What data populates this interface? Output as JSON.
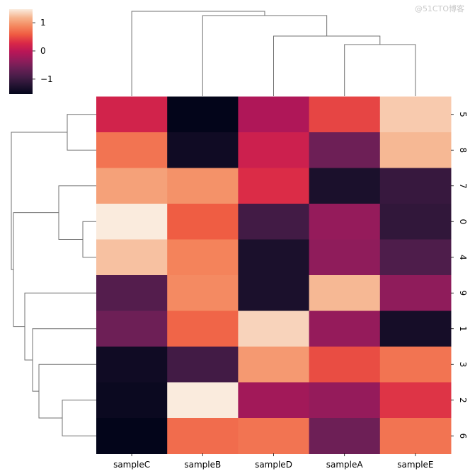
{
  "chart_data": {
    "type": "heatmap",
    "subtype": "clustermap",
    "columns": [
      "sampleC",
      "sampleB",
      "sampleD",
      "sampleA",
      "sampleE"
    ],
    "rows": [
      "5",
      "8",
      "7",
      "0",
      "4",
      "9",
      "1",
      "3",
      "2",
      "6"
    ],
    "values": [
      [
        0.2,
        -1.53,
        -0.1,
        0.45,
        1.3
      ],
      [
        0.75,
        -1.4,
        0.15,
        -0.6,
        1.2
      ],
      [
        1.05,
        0.95,
        0.3,
        -1.3,
        -1.05
      ],
      [
        1.48,
        0.6,
        -0.95,
        -0.3,
        -1.1
      ],
      [
        1.25,
        0.85,
        -1.3,
        -0.35,
        -0.85
      ],
      [
        -0.8,
        0.9,
        -1.3,
        1.2,
        -0.35
      ],
      [
        -0.6,
        0.65,
        1.35,
        -0.3,
        -1.35
      ],
      [
        -1.4,
        -0.95,
        1.0,
        0.5,
        0.75
      ],
      [
        -1.45,
        1.48,
        -0.2,
        -0.3,
        0.35
      ],
      [
        -1.53,
        0.7,
        0.75,
        -0.6,
        0.75
      ]
    ],
    "colormap": "rocket",
    "colorbar": {
      "range": [
        -1.53,
        1.48
      ],
      "ticks": [
        1,
        0,
        -1
      ],
      "tick_labels": [
        "1",
        "0",
        "−1"
      ]
    },
    "col_dendrogram": true,
    "row_dendrogram": true,
    "dendrogram_color": "#707070"
  },
  "watermark": "@51CTO博客"
}
